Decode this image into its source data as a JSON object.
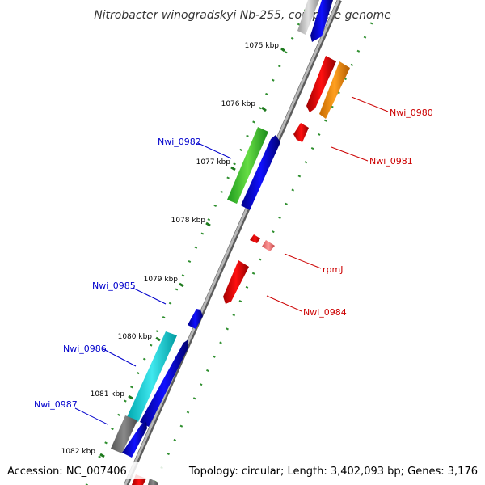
{
  "title": "Nitrobacter winogradskyi Nb-255, complete genome",
  "footer": {
    "accession": "Accession: NC_007406",
    "topology": "Topology: circular; Length: 3,402,093 bp; Genes: 3,176"
  },
  "ticks": [
    "1075 kbp",
    "1076 kbp",
    "1077 kbp",
    "1078 kbp",
    "1079 kbp",
    "1080 kbp",
    "1081 kbp",
    "1082 kbp"
  ],
  "gene_labels": {
    "Nwi_0980": "Nwi_0980",
    "Nwi_0981": "Nwi_0981",
    "rpmJ": "rpmJ",
    "Nwi_0984": "Nwi_0984",
    "Nwi_0982": "Nwi_0982",
    "Nwi_0985": "Nwi_0985",
    "Nwi_0986": "Nwi_0986",
    "Nwi_0987": "Nwi_0987"
  },
  "colors": {
    "forward_label": "#0000cc",
    "reverse_label": "#cc0000",
    "backbone": "#888888",
    "dots": "#2f8f2f"
  }
}
